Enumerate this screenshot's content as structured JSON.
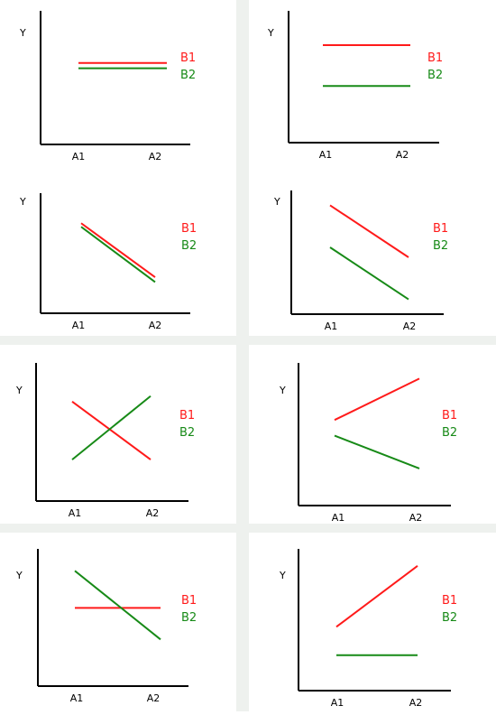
{
  "colors": {
    "b1": "#ff1a1a",
    "b2": "#178a17",
    "axis": "#000000"
  },
  "chart_data": [
    {
      "type": "line",
      "ylabel": "Y",
      "categories": [
        "A1",
        "A2"
      ],
      "ylim": [
        0,
        10
      ],
      "series": [
        {
          "name": "B1",
          "values": [
            6.1,
            6.1
          ]
        },
        {
          "name": "B2",
          "values": [
            5.7,
            5.7
          ]
        }
      ]
    },
    {
      "type": "line",
      "ylabel": "Y",
      "categories": [
        "A1",
        "A2"
      ],
      "ylim": [
        0,
        10
      ],
      "series": [
        {
          "name": "B1",
          "values": [
            7.4,
            7.4
          ]
        },
        {
          "name": "B2",
          "values": [
            4.3,
            4.3
          ]
        }
      ]
    },
    {
      "type": "line",
      "ylabel": "Y",
      "categories": [
        "A1",
        "A2"
      ],
      "ylim": [
        0,
        10
      ],
      "series": [
        {
          "name": "B1",
          "values": [
            7.5,
            3.0
          ]
        },
        {
          "name": "B2",
          "values": [
            7.2,
            2.6
          ]
        }
      ]
    },
    {
      "type": "line",
      "ylabel": "Y",
      "categories": [
        "A1",
        "A2"
      ],
      "ylim": [
        0,
        10
      ],
      "series": [
        {
          "name": "B1",
          "values": [
            8.8,
            4.6
          ]
        },
        {
          "name": "B2",
          "values": [
            5.4,
            1.2
          ]
        }
      ]
    },
    {
      "type": "line",
      "ylabel": "Y",
      "categories": [
        "A1",
        "A2"
      ],
      "ylim": [
        0,
        10
      ],
      "series": [
        {
          "name": "B1",
          "values": [
            7.2,
            3.0
          ]
        },
        {
          "name": "B2",
          "values": [
            3.0,
            7.6
          ]
        }
      ]
    },
    {
      "type": "line",
      "ylabel": "Y",
      "categories": [
        "A1",
        "A2"
      ],
      "ylim": [
        0,
        10
      ],
      "series": [
        {
          "name": "B1",
          "values": [
            6.0,
            8.9
          ]
        },
        {
          "name": "B2",
          "values": [
            4.9,
            2.6
          ]
        }
      ]
    },
    {
      "type": "line",
      "ylabel": "Y",
      "categories": [
        "A1",
        "A2"
      ],
      "ylim": [
        0,
        10
      ],
      "series": [
        {
          "name": "B1",
          "values": [
            5.7,
            5.7
          ]
        },
        {
          "name": "B2",
          "values": [
            8.4,
            3.4
          ]
        }
      ]
    },
    {
      "type": "line",
      "ylabel": "Y",
      "categories": [
        "A1",
        "A2"
      ],
      "ylim": [
        0,
        10
      ],
      "series": [
        {
          "name": "B1",
          "values": [
            4.5,
            8.8
          ]
        },
        {
          "name": "B2",
          "values": [
            2.5,
            2.5
          ]
        }
      ]
    }
  ]
}
